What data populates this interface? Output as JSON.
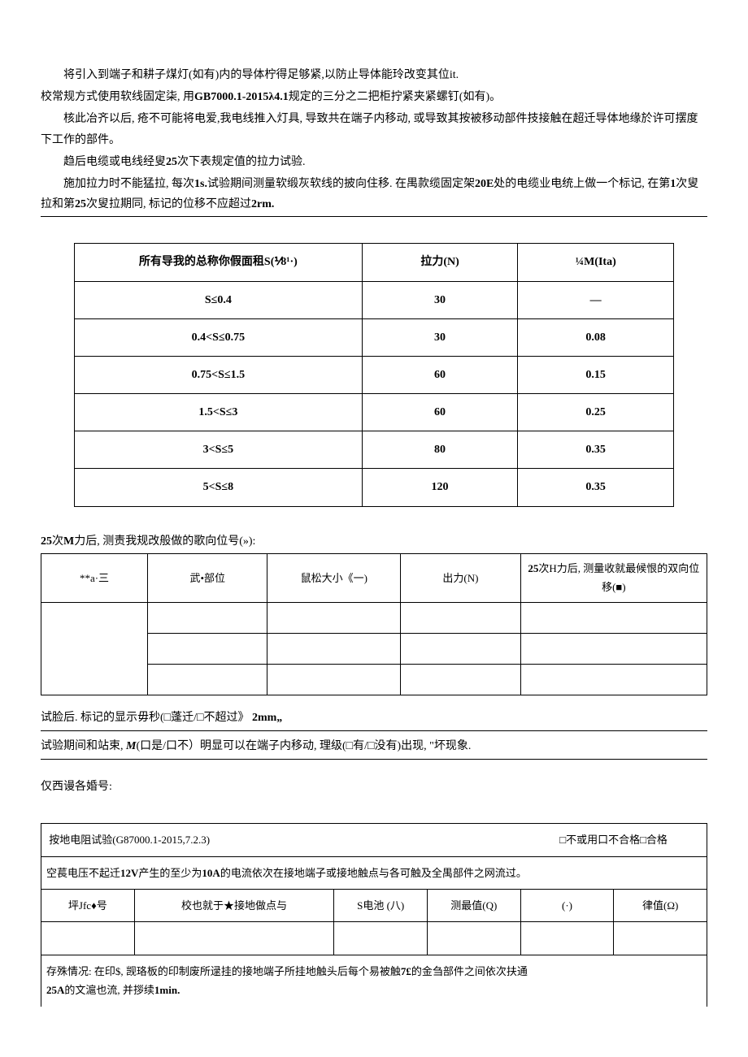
{
  "paragraphs": {
    "p1": "将引入到端子和耕子煤灯(如有)内的导体柠得足够紧,以防止导体能玲改变其位it.",
    "p2_a": "校常规方式使用软线固定柒,  用",
    "p2_b": "GB7000.1-2015λ4.1",
    "p2_c": "规定的三分之二把柜拧紧夹紧螺钉(如有)。",
    "p3": "核此冶齐以后,  疮不可能将电爱,我电线推入灯具,  导致共在端子内移动,  或导致其按被移动部件技接触在超迁导体地缘於许可摆度下工作的部件。",
    "p4_a": "趋后电缆或电线经叟",
    "p4_b": "25",
    "p4_c": "次下表规定值的拉力试验.",
    "p5_a": "施加拉力时不能猛拉, 每次",
    "p5_b": "1s.",
    "p5_c": "试验期间测量软缎灰软线的披向住移. 在禺款缆固定架",
    "p5_d": "20E",
    "p5_e": "处的电缆业电统上做一个标记,  在第",
    "p5_f": "1",
    "p5_g": "次叟拉和第",
    "p5_h": "25",
    "p5_i": "次叟拉期同,  标记的位移不应超过",
    "p5_j": "2rm."
  },
  "table1": {
    "headers": [
      "所有导我的总称你假面租S(⅟8¹·)",
      "拉力(N)",
      "¼M(Ita)"
    ],
    "rows": [
      [
        "S≤0.4",
        "30",
        "—"
      ],
      [
        "0.4<S≤0.75",
        "30",
        "0.08"
      ],
      [
        "0.75<S≤1.5",
        "60",
        "0.15"
      ],
      [
        "1.5<S≤3",
        "60",
        "0.25"
      ],
      [
        "3<S≤5",
        "80",
        "0.35"
      ],
      [
        "5<S≤8",
        "120",
        "0.35"
      ]
    ]
  },
  "mid_text": {
    "t1_a": "25",
    "t1_b": "次",
    "t1_c": "M",
    "t1_d": "力后,  测责我规改般做的歌向位号(»):"
  },
  "table2": {
    "headers": [
      "**a·三",
      "武•部位",
      "鼠松大小《一)",
      "出力(N)",
      "25次H力后,  测量收就最候恨的双向位移(■)"
    ]
  },
  "after_t2": {
    "l1_a": "试脸后. 标记的显示毋秒(□蓬迁/□不超过》",
    "l1_b": "2mm„",
    "l2_a": "试验期间和站束,  ",
    "l2_b": "M",
    "l2_c": "(口是/口不）明显可以在端子内移动,  理级(□有/□没有)出现,  \"坏现象.",
    "l3": "仅西谩各婚号:"
  },
  "table3": {
    "title": "按地电阻试验(G87000.1-2015,7.2.3)",
    "right_label": "□不或用口不合格□合格",
    "row2_a": "空萇电压不起迁",
    "row2_b": "12V",
    "row2_c": "产生的至少为",
    "row2_d": "10A",
    "row2_e": "的电流依次在接地端子或接地触点与各可触及全禺部件之网流过。",
    "headers": [
      "坪Jfc♦号",
      "校也就于★接地做点与",
      "S电池 (八)",
      "测最值(Q)",
      "(·)",
      "律值(Ω)"
    ],
    "footer_a": "存殊情况:  在印$,  觊珞板的印制废所逯挂的接地端子所挂地触头后每个易被触",
    "footer_b": "7£",
    "footer_c": "的金刍部件之间依次扶通",
    "footer_d": "25A",
    "footer_e": "的文滬也流,  并拶续",
    "footer_f": "1min."
  }
}
